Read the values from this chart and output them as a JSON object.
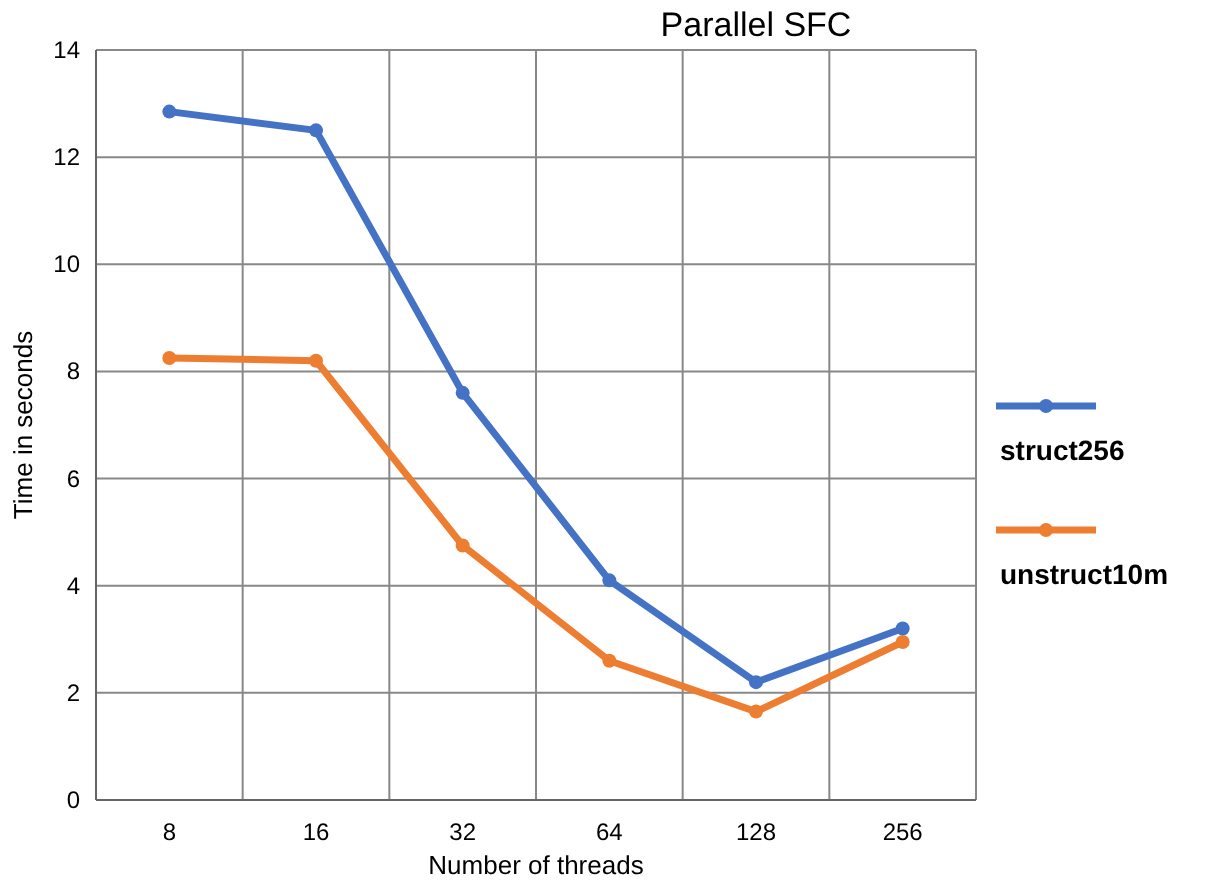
{
  "chart_data": {
    "type": "line",
    "title": "Parallel SFC",
    "xlabel": "Number  of threads",
    "ylabel": "Time in seconds",
    "categories": [
      "8",
      "16",
      "32",
      "64",
      "128",
      "256"
    ],
    "series": [
      {
        "name": "struct256",
        "color": "#4472c4",
        "values": [
          12.85,
          12.5,
          7.6,
          4.1,
          2.2,
          3.2
        ]
      },
      {
        "name": "unstruct10m",
        "color": "#ed7d31",
        "values": [
          8.25,
          8.2,
          4.75,
          2.6,
          1.65,
          2.95
        ]
      }
    ],
    "ylim": [
      0,
      14
    ],
    "yticks": [
      0,
      2,
      4,
      6,
      8,
      10,
      12,
      14
    ],
    "grid": true,
    "legend": "right",
    "marker": "circle",
    "line_style": "solid"
  }
}
